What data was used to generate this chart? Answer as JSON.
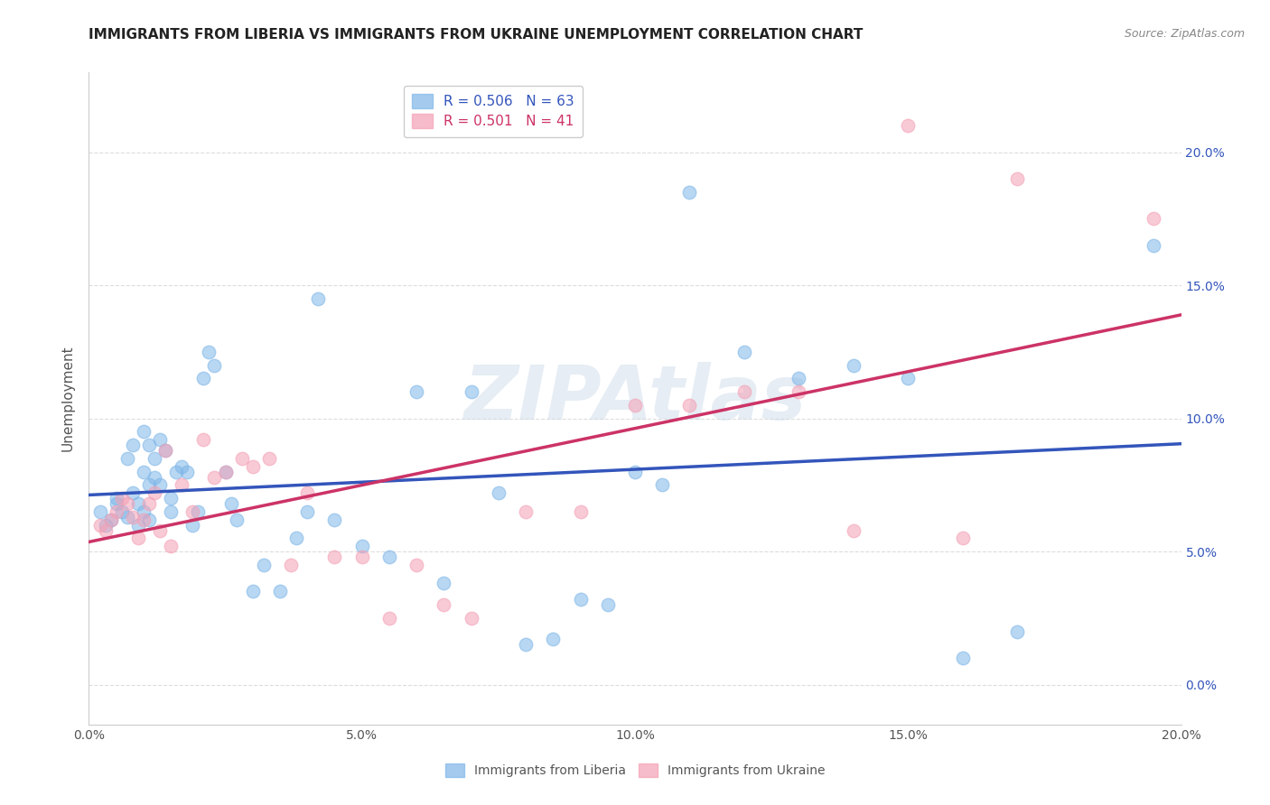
{
  "title": "IMMIGRANTS FROM LIBERIA VS IMMIGRANTS FROM UKRAINE UNEMPLOYMENT CORRELATION CHART",
  "source": "Source: ZipAtlas.com",
  "ylabel": "Unemployment",
  "liberia_color": "#7EB6E8",
  "ukraine_color": "#F4A0B5",
  "liberia_line_color": "#3355BB",
  "ukraine_line_color": "#CC3366",
  "liberia_R": "0.506",
  "liberia_N": "63",
  "ukraine_R": "0.501",
  "ukraine_N": "41",
  "legend_blue_label": "Immigrants from Liberia",
  "legend_pink_label": "Immigrants from Ukraine",
  "watermark": "ZIPAtlas",
  "xlim": [
    0,
    20
  ],
  "ylim": [
    -1.5,
    23
  ],
  "background_color": "#ffffff",
  "grid_color": "#dddddd",
  "title_fontsize": 11,
  "source_fontsize": 9,
  "liberia_x": [
    0.2,
    0.3,
    0.4,
    0.5,
    0.5,
    0.6,
    0.7,
    0.7,
    0.8,
    0.8,
    0.9,
    0.9,
    1.0,
    1.0,
    1.0,
    1.1,
    1.1,
    1.1,
    1.2,
    1.2,
    1.3,
    1.3,
    1.4,
    1.5,
    1.5,
    1.6,
    1.7,
    1.8,
    1.9,
    2.0,
    2.1,
    2.2,
    2.3,
    2.5,
    2.6,
    2.7,
    3.0,
    3.2,
    3.5,
    3.8,
    4.0,
    4.2,
    4.5,
    5.0,
    5.5,
    6.0,
    6.5,
    7.0,
    7.5,
    8.0,
    8.5,
    9.0,
    9.5,
    10.0,
    10.5,
    11.0,
    12.0,
    13.0,
    14.0,
    15.0,
    16.0,
    17.0,
    19.5
  ],
  "liberia_y": [
    6.5,
    6.0,
    6.2,
    7.0,
    6.8,
    6.5,
    6.3,
    8.5,
    7.2,
    9.0,
    6.8,
    6.0,
    8.0,
    6.5,
    9.5,
    7.5,
    9.0,
    6.2,
    7.8,
    8.5,
    9.2,
    7.5,
    8.8,
    7.0,
    6.5,
    8.0,
    8.2,
    8.0,
    6.0,
    6.5,
    11.5,
    12.5,
    12.0,
    8.0,
    6.8,
    6.2,
    3.5,
    4.5,
    3.5,
    5.5,
    6.5,
    14.5,
    6.2,
    5.2,
    4.8,
    11.0,
    3.8,
    11.0,
    7.2,
    1.5,
    1.7,
    3.2,
    3.0,
    8.0,
    7.5,
    18.5,
    12.5,
    11.5,
    12.0,
    11.5,
    1.0,
    2.0,
    16.5
  ],
  "ukraine_x": [
    0.2,
    0.3,
    0.4,
    0.5,
    0.6,
    0.7,
    0.8,
    0.9,
    1.0,
    1.1,
    1.2,
    1.3,
    1.4,
    1.5,
    1.7,
    1.9,
    2.1,
    2.3,
    2.5,
    2.8,
    3.0,
    3.3,
    3.7,
    4.0,
    4.5,
    5.0,
    5.5,
    6.0,
    6.5,
    7.0,
    8.0,
    9.0,
    10.0,
    11.0,
    12.0,
    13.0,
    14.0,
    15.0,
    16.0,
    17.0,
    19.5
  ],
  "ukraine_y": [
    6.0,
    5.8,
    6.2,
    6.5,
    7.0,
    6.8,
    6.3,
    5.5,
    6.2,
    6.8,
    7.2,
    5.8,
    8.8,
    5.2,
    7.5,
    6.5,
    9.2,
    7.8,
    8.0,
    8.5,
    8.2,
    8.5,
    4.5,
    7.2,
    4.8,
    4.8,
    2.5,
    4.5,
    3.0,
    2.5,
    6.5,
    6.5,
    10.5,
    10.5,
    11.0,
    11.0,
    5.8,
    21.0,
    5.5,
    19.0,
    17.5
  ]
}
